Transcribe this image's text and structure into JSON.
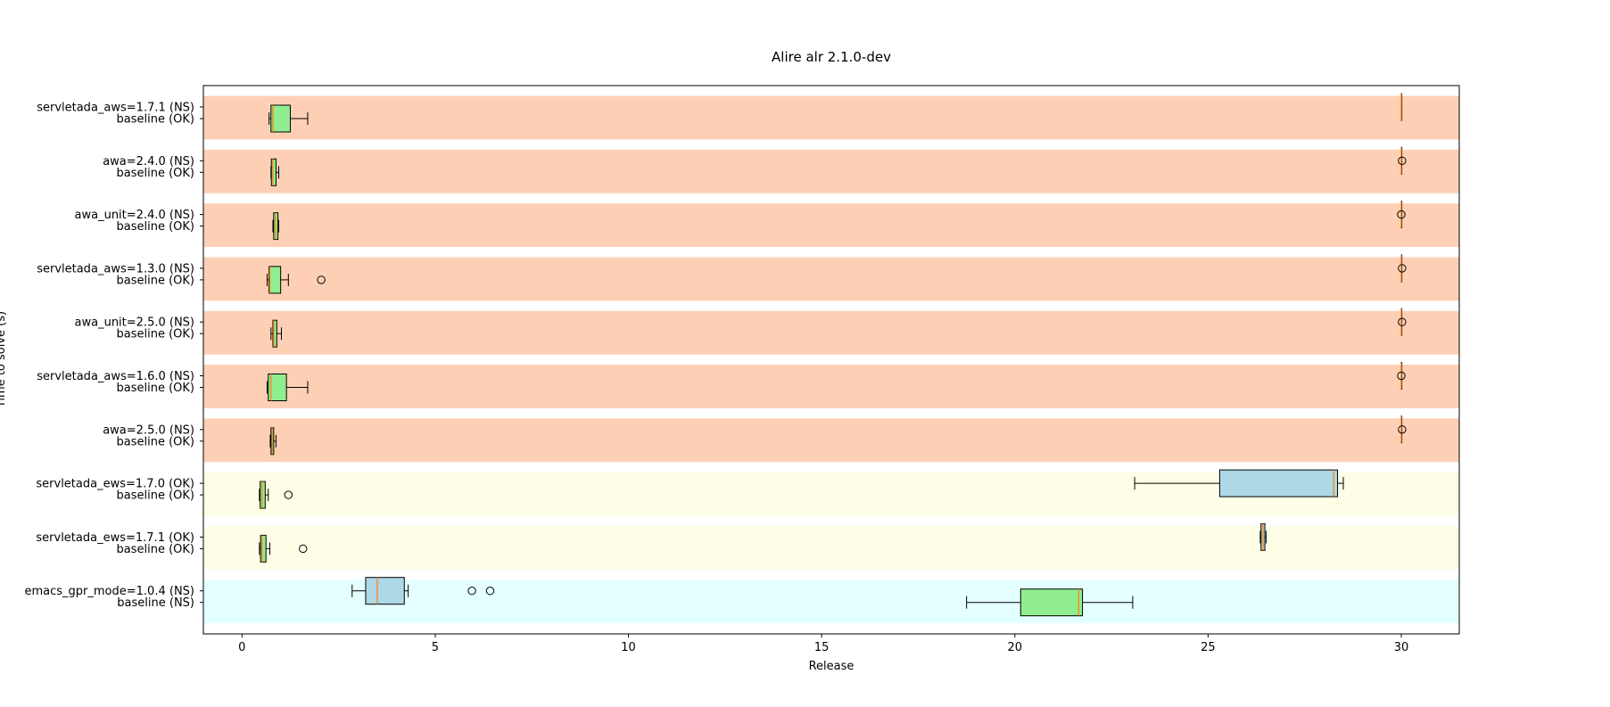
{
  "chart_data": {
    "type": "boxplot",
    "title": "Alire alr 2.1.0-dev",
    "xlabel": "Release",
    "ylabel": "Time to solve (s)",
    "xlim": [
      -1,
      31.5
    ],
    "xticks": [
      0,
      5,
      10,
      15,
      20,
      25,
      30
    ],
    "grid": false,
    "colors": {
      "band_ns": "#fdd0b6",
      "band_ok": "#fefee6",
      "band_mixed": "#e4ffff",
      "box_baseline": "#90ee90",
      "box_variant": "#add8e6",
      "median": "#ff7f0e"
    },
    "groups": [
      {
        "label": "servletada_aws=1.7.1 (NS)",
        "baseline_label": "baseline (OK)",
        "band": "band_ns",
        "variant": {
          "whislo": 30.0,
          "q1": 30.0,
          "med": 30.0,
          "q3": 30.0,
          "whishi": 30.0,
          "fliers": []
        },
        "baseline": {
          "whislo": 0.7,
          "q1": 0.75,
          "med": 0.8,
          "q3": 1.25,
          "whishi": 1.7,
          "fliers": []
        }
      },
      {
        "label": "awa=2.4.0 (NS)",
        "baseline_label": "baseline (OK)",
        "band": "band_ns",
        "variant": {
          "whislo": 30.0,
          "q1": 30.0,
          "med": 30.0,
          "q3": 30.0,
          "whishi": 30.0,
          "fliers": [
            30.02
          ]
        },
        "baseline": {
          "whislo": 0.75,
          "q1": 0.76,
          "med": 0.8,
          "q3": 0.88,
          "whishi": 0.95,
          "fliers": []
        }
      },
      {
        "label": "awa_unit=2.4.0 (NS)",
        "baseline_label": "baseline (OK)",
        "band": "band_ns",
        "variant": {
          "whislo": 30.0,
          "q1": 30.0,
          "med": 30.0,
          "q3": 30.0,
          "whishi": 30.0,
          "fliers": [
            30.0
          ]
        },
        "baseline": {
          "whislo": 0.8,
          "q1": 0.82,
          "med": 0.87,
          "q3": 0.93,
          "whishi": 0.95,
          "fliers": []
        }
      },
      {
        "label": "servletada_aws=1.3.0 (NS)",
        "baseline_label": "baseline (OK)",
        "band": "band_ns",
        "variant": {
          "whislo": 30.0,
          "q1": 30.0,
          "med": 30.0,
          "q3": 30.0,
          "whishi": 30.0,
          "fliers": [
            30.02
          ]
        },
        "baseline": {
          "whislo": 0.65,
          "q1": 0.7,
          "med": 0.72,
          "q3": 1.0,
          "whishi": 1.2,
          "fliers": [
            2.05
          ]
        }
      },
      {
        "label": "awa_unit=2.5.0 (NS)",
        "baseline_label": "baseline (OK)",
        "band": "band_ns",
        "variant": {
          "whislo": 30.0,
          "q1": 30.0,
          "med": 30.0,
          "q3": 30.0,
          "whishi": 30.0,
          "fliers": [
            30.02
          ]
        },
        "baseline": {
          "whislo": 0.75,
          "q1": 0.8,
          "med": 0.82,
          "q3": 0.9,
          "whishi": 1.02,
          "fliers": []
        }
      },
      {
        "label": "servletada_aws=1.6.0 (NS)",
        "baseline_label": "baseline (OK)",
        "band": "band_ns",
        "variant": {
          "whislo": 30.0,
          "q1": 30.0,
          "med": 30.0,
          "q3": 30.0,
          "whishi": 30.0,
          "fliers": [
            30.0
          ]
        },
        "baseline": {
          "whislo": 0.65,
          "q1": 0.68,
          "med": 0.75,
          "q3": 1.15,
          "whishi": 1.7,
          "fliers": []
        }
      },
      {
        "label": "awa=2.5.0 (NS)",
        "baseline_label": "baseline (OK)",
        "band": "band_ns",
        "variant": {
          "whislo": 30.0,
          "q1": 30.0,
          "med": 30.0,
          "q3": 30.0,
          "whishi": 30.0,
          "fliers": [
            30.02
          ]
        },
        "baseline": {
          "whislo": 0.73,
          "q1": 0.75,
          "med": 0.78,
          "q3": 0.82,
          "whishi": 0.88,
          "fliers": []
        }
      },
      {
        "label": "servletada_ews=1.7.0 (OK)",
        "baseline_label": "baseline (OK)",
        "band": "band_ok",
        "variant": {
          "whislo": 23.1,
          "q1": 25.3,
          "med": 28.25,
          "q3": 28.35,
          "whishi": 28.5,
          "fliers": []
        },
        "baseline": {
          "whislo": 0.45,
          "q1": 0.47,
          "med": 0.52,
          "q3": 0.6,
          "whishi": 0.68,
          "fliers": [
            1.2
          ]
        }
      },
      {
        "label": "servletada_ews=1.7.1 (OK)",
        "baseline_label": "baseline (OK)",
        "band": "band_ok",
        "variant": {
          "whislo": 26.35,
          "q1": 26.37,
          "med": 26.42,
          "q3": 26.47,
          "whishi": 26.5,
          "fliers": []
        },
        "baseline": {
          "whislo": 0.45,
          "q1": 0.48,
          "med": 0.52,
          "q3": 0.62,
          "whishi": 0.72,
          "fliers": [
            1.58
          ]
        }
      },
      {
        "label": "emacs_gpr_mode=1.0.4 (NS)",
        "baseline_label": "baseline (NS)",
        "band": "band_mixed",
        "variant": {
          "whislo": 2.85,
          "q1": 3.2,
          "med": 3.5,
          "q3": 4.2,
          "whishi": 4.3,
          "fliers": [
            5.95,
            6.42
          ]
        },
        "baseline": {
          "whislo": 18.75,
          "q1": 20.15,
          "med": 21.65,
          "q3": 21.75,
          "whishi": 23.05,
          "fliers": []
        }
      }
    ]
  }
}
